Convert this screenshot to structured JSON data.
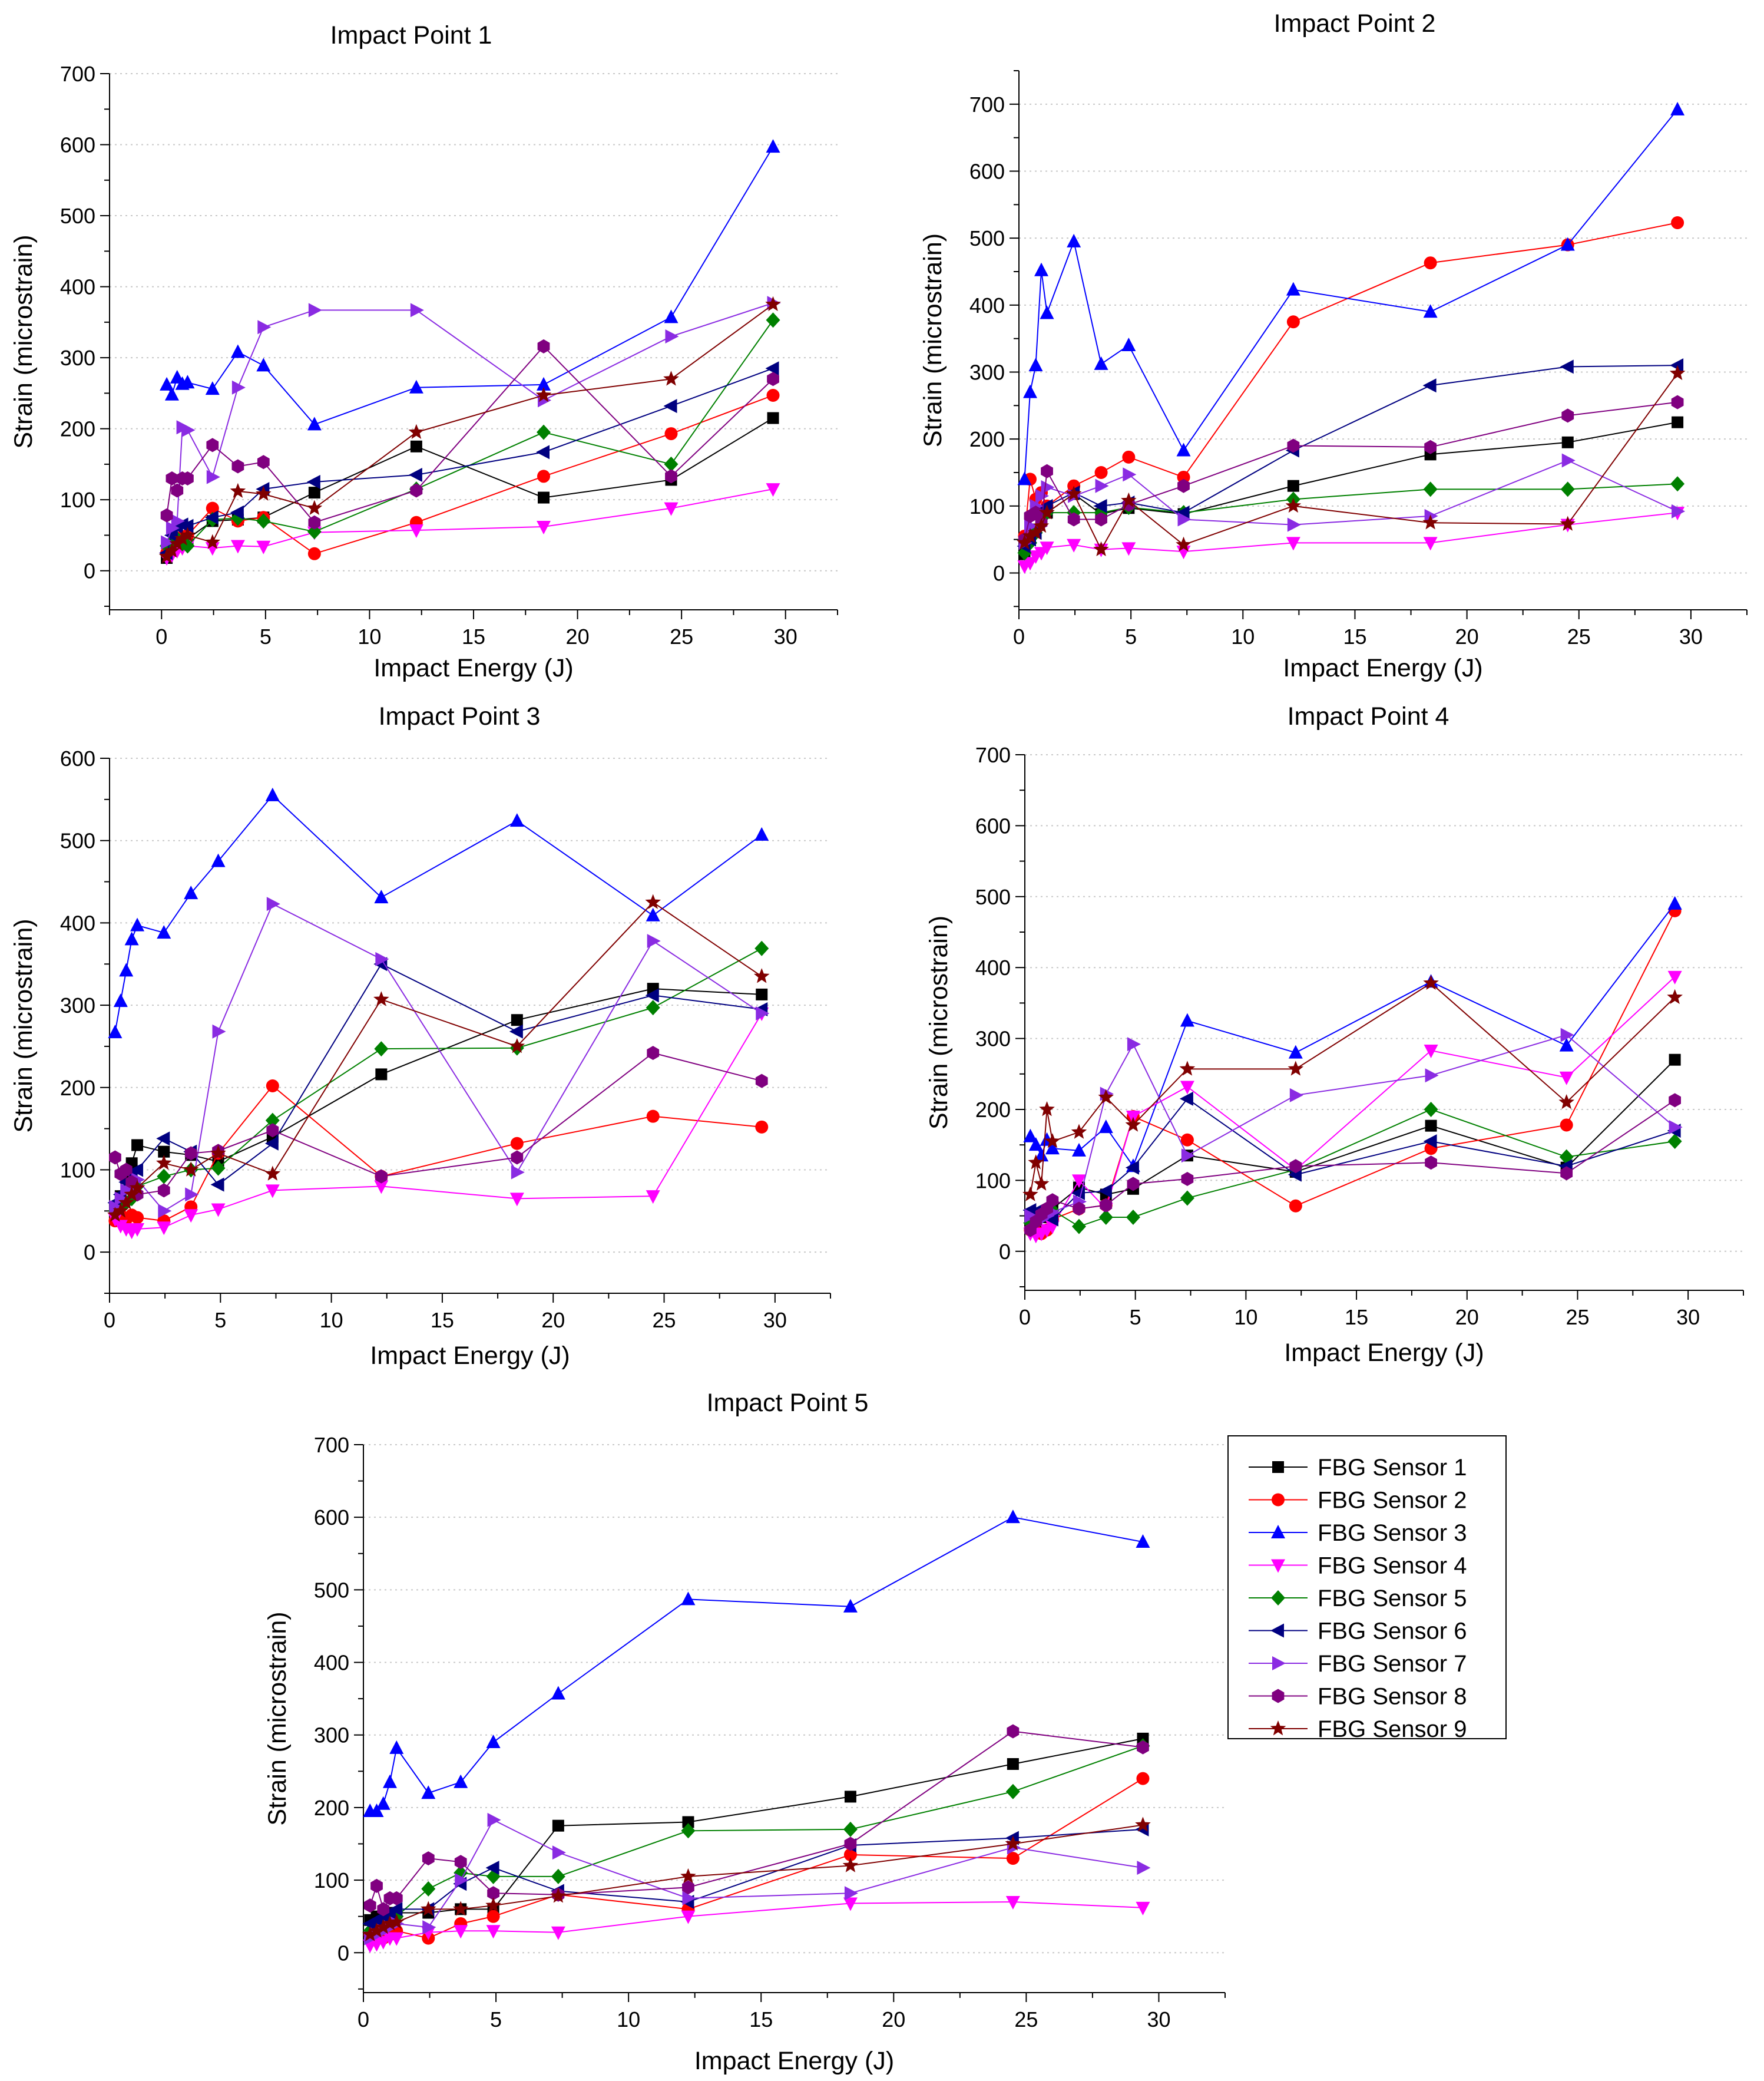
{
  "figure": {
    "legend_title": ""
  },
  "series_styles": [
    {
      "name": "FBG Sensor 1",
      "color": "#000000",
      "marker": "square"
    },
    {
      "name": "FBG Sensor 2",
      "color": "#ff0000",
      "marker": "circle"
    },
    {
      "name": "FBG Sensor 3",
      "color": "#0000ff",
      "marker": "triangle-up"
    },
    {
      "name": "FBG Sensor 4",
      "color": "#ff00ff",
      "marker": "triangle-down"
    },
    {
      "name": "FBG Sensor 5",
      "color": "#008000",
      "marker": "diamond"
    },
    {
      "name": "FBG Sensor 6",
      "color": "#000080",
      "marker": "triangle-left"
    },
    {
      "name": "FBG Sensor 7",
      "color": "#8a2be2",
      "marker": "triangle-right"
    },
    {
      "name": "FBG Sensor 8",
      "color": "#800080",
      "marker": "hexagon"
    },
    {
      "name": "FBG Sensor 9",
      "color": "#800000",
      "marker": "star"
    }
  ],
  "chart_data": [
    {
      "type": "line",
      "title": "Impact Point 1",
      "xlabel": "Impact Energy (J)",
      "ylabel": "Strain (microstrain)",
      "xlim": [
        -2.5,
        32.5
      ],
      "ylim": [
        -55,
        700
      ],
      "xticks": [
        0,
        5,
        10,
        15,
        20,
        25,
        30
      ],
      "yticks": [
        0,
        100,
        200,
        300,
        400,
        500,
        600,
        700
      ],
      "grid": "horizontal-dotted",
      "x": [
        0.25,
        0.5,
        0.75,
        1.0,
        1.25,
        2.45,
        3.67,
        4.9,
        7.35,
        12.25,
        18.37,
        24.5,
        29.4
      ],
      "series": [
        {
          "name": "FBG Sensor 1",
          "values": [
            18,
            28,
            35,
            40,
            45,
            70,
            72,
            75,
            110,
            175,
            103,
            128,
            215
          ]
        },
        {
          "name": "FBG Sensor 2",
          "values": [
            25,
            35,
            42,
            48,
            50,
            88,
            70,
            75,
            24,
            68,
            133,
            193,
            247
          ]
        },
        {
          "name": "FBG Sensor 3",
          "values": [
            262,
            248,
            272,
            263,
            265,
            256,
            308,
            289,
            206,
            258,
            262,
            357,
            597
          ]
        },
        {
          "name": "FBG Sensor 4",
          "values": [
            18,
            22,
            28,
            32,
            35,
            32,
            35,
            34,
            54,
            57,
            62,
            88,
            115
          ]
        },
        {
          "name": "FBG Sensor 5",
          "values": [
            35,
            40,
            45,
            38,
            35,
            72,
            74,
            70,
            55,
            115,
            195,
            150,
            353
          ]
        },
        {
          "name": "FBG Sensor 6",
          "values": [
            25,
            50,
            62,
            65,
            63,
            75,
            82,
            115,
            125,
            135,
            167,
            232,
            285
          ]
        },
        {
          "name": "FBG Sensor 7",
          "values": [
            40,
            60,
            70,
            202,
            198,
            132,
            258,
            343,
            367,
            367,
            240,
            330,
            377
          ]
        },
        {
          "name": "FBG Sensor 8",
          "values": [
            78,
            130,
            113,
            130,
            130,
            177,
            147,
            153,
            68,
            113,
            316,
            133,
            270
          ]
        },
        {
          "name": "FBG Sensor 9",
          "values": [
            20,
            28,
            38,
            45,
            50,
            40,
            112,
            108,
            88,
            195,
            247,
            270,
            375
          ]
        }
      ]
    },
    {
      "type": "line",
      "title": "Impact Point 2",
      "xlabel": "Impact Energy (J)",
      "ylabel": "Strain (microstrain)",
      "xlim": [
        0,
        32.5
      ],
      "ylim": [
        -55,
        750
      ],
      "xticks": [
        0,
        5,
        10,
        15,
        20,
        25,
        30
      ],
      "yticks": [
        0,
        100,
        200,
        300,
        400,
        500,
        600,
        700
      ],
      "grid": "horizontal-dotted",
      "x": [
        0.25,
        0.5,
        0.75,
        1.0,
        1.25,
        2.45,
        3.67,
        4.9,
        7.35,
        12.25,
        18.37,
        24.5,
        29.4
      ],
      "series": [
        {
          "name": "FBG Sensor 1",
          "values": [
            28,
            50,
            65,
            80,
            90,
            118,
            88,
            97,
            88,
            130,
            177,
            195,
            225
          ]
        },
        {
          "name": "FBG Sensor 2",
          "values": [
            55,
            140,
            110,
            120,
            100,
            130,
            150,
            173,
            143,
            375,
            463,
            490,
            523
          ]
        },
        {
          "name": "FBG Sensor 3",
          "values": [
            140,
            270,
            310,
            452,
            388,
            495,
            312,
            340,
            183,
            423,
            390,
            490,
            692
          ]
        },
        {
          "name": "FBG Sensor 4",
          "values": [
            10,
            15,
            25,
            30,
            38,
            42,
            35,
            37,
            32,
            45,
            45,
            72,
            90
          ]
        },
        {
          "name": "FBG Sensor 5",
          "values": [
            30,
            45,
            60,
            85,
            90,
            90,
            90,
            98,
            90,
            110,
            125,
            125,
            133
          ]
        },
        {
          "name": "FBG Sensor 6",
          "values": [
            40,
            50,
            60,
            95,
            100,
            120,
            100,
            105,
            90,
            183,
            280,
            308,
            310
          ]
        },
        {
          "name": "FBG Sensor 7",
          "values": [
            45,
            70,
            100,
            115,
            128,
            115,
            130,
            147,
            80,
            72,
            85,
            168,
            92
          ]
        },
        {
          "name": "FBG Sensor 8",
          "values": [
            50,
            85,
            90,
            75,
            152,
            80,
            80,
            102,
            130,
            190,
            188,
            235,
            255
          ]
        },
        {
          "name": "FBG Sensor 9",
          "values": [
            45,
            55,
            60,
            70,
            90,
            118,
            35,
            108,
            42,
            100,
            75,
            73,
            298
          ]
        }
      ]
    },
    {
      "type": "line",
      "title": "Impact Point 3",
      "xlabel": "Impact Energy (J)",
      "ylabel": "Strain (microstrain)",
      "xlim": [
        0,
        32.5
      ],
      "ylim": [
        -50,
        600
      ],
      "xticks": [
        0,
        5,
        10,
        15,
        20,
        25,
        30
      ],
      "yticks": [
        0,
        100,
        200,
        300,
        400,
        500,
        600
      ],
      "grid": "horizontal-dotted",
      "x": [
        0.25,
        0.5,
        0.75,
        1.0,
        1.25,
        2.45,
        3.67,
        4.9,
        7.35,
        12.25,
        18.37,
        24.5,
        29.4
      ],
      "series": [
        {
          "name": "FBG Sensor 1",
          "values": [
            45,
            68,
            90,
            108,
            130,
            122,
            118,
            110,
            140,
            216,
            282,
            320,
            313
          ]
        },
        {
          "name": "FBG Sensor 2",
          "values": [
            38,
            45,
            40,
            45,
            42,
            38,
            55,
            120,
            202,
            92,
            132,
            165,
            152
          ]
        },
        {
          "name": "FBG Sensor 3",
          "values": [
            267,
            305,
            342,
            380,
            397,
            388,
            436,
            475,
            555,
            431,
            524,
            409,
            507
          ]
        },
        {
          "name": "FBG Sensor 4",
          "values": [
            40,
            32,
            28,
            25,
            28,
            30,
            45,
            52,
            75,
            80,
            65,
            68,
            290
          ]
        },
        {
          "name": "FBG Sensor 5",
          "values": [
            50,
            55,
            60,
            65,
            80,
            92,
            100,
            102,
            160,
            247,
            248,
            297,
            369
          ]
        },
        {
          "name": "FBG Sensor 6",
          "values": [
            60,
            70,
            85,
            95,
            100,
            138,
            122,
            82,
            132,
            350,
            268,
            312,
            295
          ]
        },
        {
          "name": "FBG Sensor 7",
          "values": [
            55,
            65,
            75,
            80,
            88,
            50,
            70,
            268,
            423,
            356,
            97,
            378,
            290
          ]
        },
        {
          "name": "FBG Sensor 8",
          "values": [
            115,
            95,
            100,
            85,
            70,
            75,
            120,
            123,
            148,
            92,
            115,
            242,
            208
          ]
        },
        {
          "name": "FBG Sensor 9",
          "values": [
            45,
            50,
            60,
            70,
            78,
            108,
            100,
            120,
            95,
            307,
            250,
            425,
            335
          ]
        }
      ]
    },
    {
      "type": "line",
      "title": "Impact Point 4",
      "xlabel": "Impact Energy (J)",
      "ylabel": "Strain (microstrain)",
      "xlim": [
        0,
        32.5
      ],
      "ylim": [
        -55,
        700
      ],
      "xticks": [
        0,
        5,
        10,
        15,
        20,
        25,
        30
      ],
      "yticks": [
        0,
        100,
        200,
        300,
        400,
        500,
        600,
        700
      ],
      "grid": "horizontal-dotted",
      "x": [
        0.25,
        0.5,
        0.75,
        1.0,
        1.25,
        2.45,
        3.67,
        4.9,
        7.35,
        12.25,
        18.37,
        24.5,
        29.4
      ],
      "series": [
        {
          "name": "FBG Sensor 1",
          "values": [
            35,
            40,
            48,
            50,
            60,
            90,
            80,
            88,
            135,
            112,
            177,
            118,
            270
          ]
        },
        {
          "name": "FBG Sensor 2",
          "values": [
            30,
            28,
            25,
            30,
            45,
            60,
            65,
            190,
            157,
            64,
            145,
            178,
            480
          ]
        },
        {
          "name": "FBG Sensor 3",
          "values": [
            162,
            150,
            135,
            157,
            145,
            142,
            175,
            120,
            325,
            280,
            380,
            290,
            490
          ]
        },
        {
          "name": "FBG Sensor 4",
          "values": [
            25,
            22,
            25,
            30,
            35,
            100,
            60,
            190,
            232,
            115,
            283,
            245,
            387
          ]
        },
        {
          "name": "FBG Sensor 5",
          "values": [
            40,
            45,
            50,
            55,
            58,
            35,
            48,
            48,
            75,
            115,
            200,
            133,
            155
          ]
        },
        {
          "name": "FBG Sensor 6",
          "values": [
            58,
            50,
            60,
            55,
            45,
            82,
            85,
            118,
            215,
            108,
            155,
            120,
            170
          ]
        },
        {
          "name": "FBG Sensor 7",
          "values": [
            50,
            40,
            45,
            50,
            55,
            70,
            222,
            292,
            135,
            220,
            248,
            305,
            175
          ]
        },
        {
          "name": "FBG Sensor 8",
          "values": [
            30,
            42,
            52,
            60,
            72,
            60,
            65,
            95,
            102,
            120,
            125,
            110,
            213
          ]
        },
        {
          "name": "FBG Sensor 9",
          "values": [
            80,
            125,
            95,
            200,
            155,
            168,
            217,
            178,
            257,
            257,
            378,
            210,
            358
          ]
        }
      ]
    },
    {
      "type": "line",
      "title": "Impact Point 5",
      "xlabel": "Impact Energy (J)",
      "ylabel": "Strain (microstrain)",
      "xlim": [
        0,
        32.5
      ],
      "ylim": [
        -55,
        700
      ],
      "xticks": [
        0,
        5,
        10,
        15,
        20,
        25,
        30
      ],
      "yticks": [
        0,
        100,
        200,
        300,
        400,
        500,
        600,
        700
      ],
      "grid": "horizontal-dotted",
      "x": [
        0.25,
        0.5,
        0.75,
        1.0,
        1.25,
        2.45,
        3.67,
        4.9,
        7.35,
        12.25,
        18.37,
        24.5,
        29.4
      ],
      "series": [
        {
          "name": "FBG Sensor 1",
          "values": [
            45,
            50,
            55,
            55,
            55,
            55,
            60,
            60,
            175,
            180,
            215,
            260,
            295
          ]
        },
        {
          "name": "FBG Sensor 2",
          "values": [
            25,
            30,
            20,
            25,
            30,
            20,
            40,
            50,
            80,
            60,
            135,
            130,
            240
          ]
        },
        {
          "name": "FBG Sensor 3",
          "values": [
            195,
            195,
            205,
            235,
            282,
            220,
            235,
            290,
            357,
            487,
            477,
            600,
            566
          ]
        },
        {
          "name": "FBG Sensor 4",
          "values": [
            10,
            12,
            15,
            20,
            20,
            28,
            30,
            30,
            28,
            50,
            68,
            70,
            62
          ]
        },
        {
          "name": "FBG Sensor 5",
          "values": [
            30,
            35,
            40,
            45,
            50,
            88,
            110,
            105,
            105,
            168,
            170,
            222,
            285
          ]
        },
        {
          "name": "FBG Sensor 6",
          "values": [
            40,
            45,
            50,
            55,
            60,
            60,
            95,
            117,
            85,
            70,
            148,
            158,
            170
          ]
        },
        {
          "name": "FBG Sensor 7",
          "values": [
            20,
            25,
            30,
            35,
            40,
            35,
            100,
            183,
            138,
            75,
            82,
            145,
            117
          ]
        },
        {
          "name": "FBG Sensor 8",
          "values": [
            65,
            92,
            60,
            75,
            75,
            130,
            125,
            82,
            80,
            90,
            150,
            305,
            283
          ]
        },
        {
          "name": "FBG Sensor 9",
          "values": [
            25,
            30,
            35,
            40,
            42,
            60,
            60,
            65,
            78,
            105,
            120,
            150,
            176
          ]
        }
      ]
    }
  ]
}
